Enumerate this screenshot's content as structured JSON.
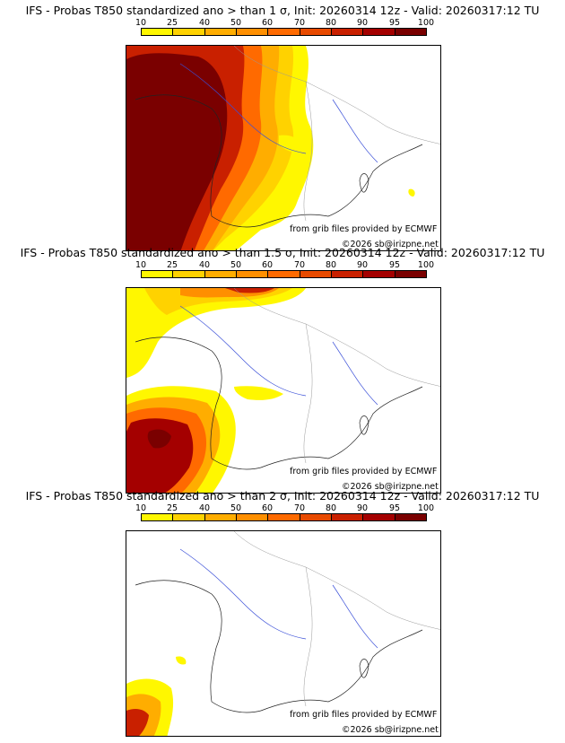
{
  "scale": {
    "ticks": [
      "10",
      "25",
      "40",
      "50",
      "60",
      "70",
      "80",
      "90",
      "95",
      "100"
    ],
    "colors": [
      "#fff700",
      "#ffd200",
      "#ffad00",
      "#ff8f00",
      "#ff6a00",
      "#e84a00",
      "#c92000",
      "#a40000",
      "#7a0000"
    ]
  },
  "panels": [
    {
      "title": "IFS - Probas T850  standardized ano > than 1 σ, Init: 20260314 12z - Valid: 20260317:12 TU",
      "level": "high"
    },
    {
      "title": "IFS - Probas T850  standardized ano > than 1.5 σ, Init: 20260314 12z - Valid: 20260317:12 TU",
      "level": "medium"
    },
    {
      "title": "IFS - Probas T850  standardized ano > than 2 σ, Init: 20260314 12z - Valid: 20260317:12 TU",
      "level": "low"
    }
  ],
  "credit": "from grib files provided by ECMWF",
  "copyright": "©2026 sb@irizpne.net"
}
